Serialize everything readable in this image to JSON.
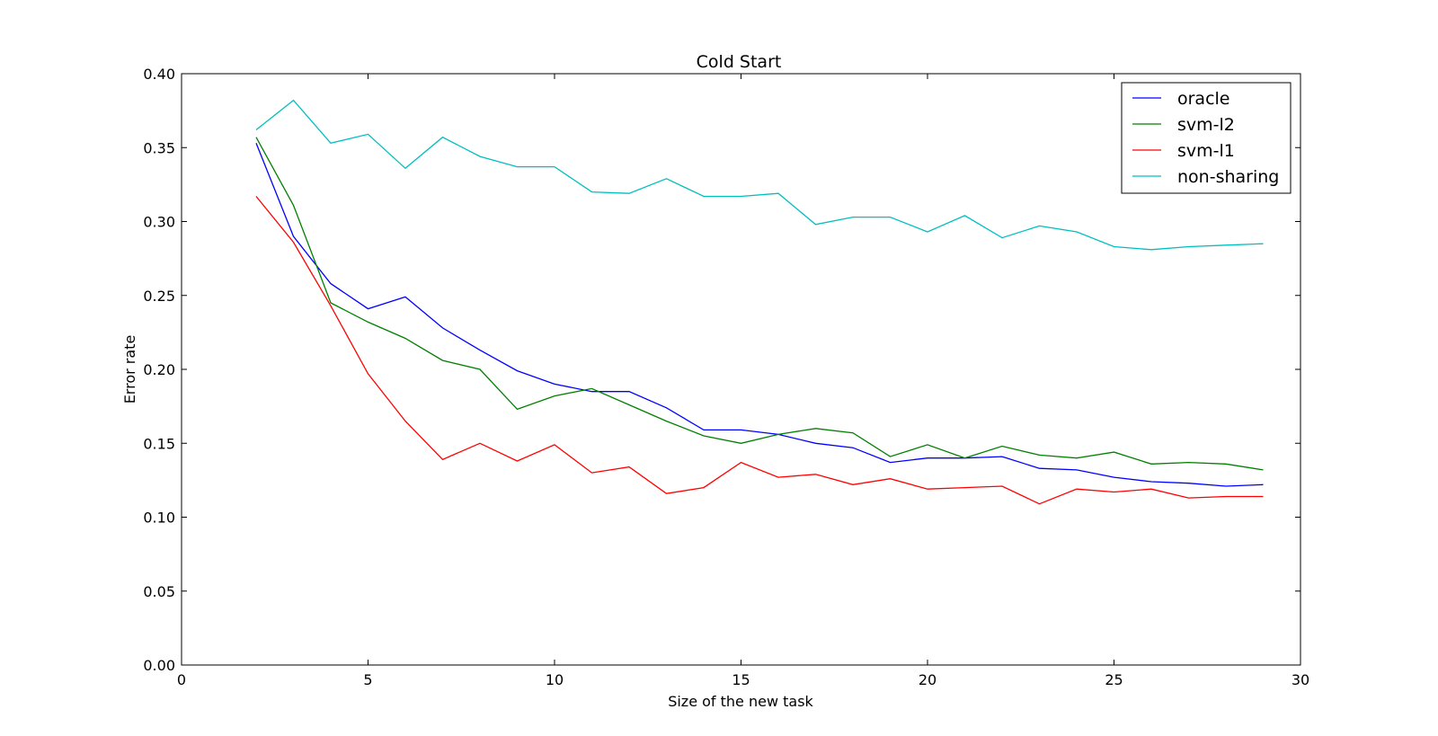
{
  "chart_data": {
    "type": "line",
    "title": "Cold Start",
    "xlabel": "Size of the new task",
    "ylabel": "Error rate",
    "xlim": [
      0,
      30
    ],
    "ylim": [
      0.0,
      0.4
    ],
    "xticks": [
      0,
      5,
      10,
      15,
      20,
      25,
      30
    ],
    "xtick_labels": [
      "0",
      "5",
      "10",
      "15",
      "20",
      "25",
      "30"
    ],
    "yticks": [
      0.0,
      0.05,
      0.1,
      0.15,
      0.2,
      0.25,
      0.3,
      0.35,
      0.4
    ],
    "ytick_labels": [
      "0.00",
      "0.05",
      "0.10",
      "0.15",
      "0.20",
      "0.25",
      "0.30",
      "0.35",
      "0.40"
    ],
    "grid": false,
    "legend_position": "top-right",
    "x": [
      2,
      3,
      4,
      5,
      6,
      7,
      8,
      9,
      10,
      11,
      12,
      13,
      14,
      15,
      16,
      17,
      18,
      19,
      20,
      21,
      22,
      23,
      24,
      25,
      26,
      27,
      28,
      29
    ],
    "series": [
      {
        "name": "oracle",
        "color": "#0000ff",
        "values": [
          0.353,
          0.29,
          0.258,
          0.241,
          0.249,
          0.228,
          0.213,
          0.199,
          0.19,
          0.185,
          0.185,
          0.174,
          0.159,
          0.159,
          0.156,
          0.15,
          0.147,
          0.137,
          0.14,
          0.14,
          0.141,
          0.133,
          0.132,
          0.127,
          0.124,
          0.123,
          0.121,
          0.122
        ]
      },
      {
        "name": "svm-l2",
        "color": "#008000",
        "values": [
          0.357,
          0.311,
          0.245,
          0.232,
          0.221,
          0.206,
          0.2,
          0.173,
          0.182,
          0.187,
          0.176,
          0.165,
          0.155,
          0.15,
          0.156,
          0.16,
          0.157,
          0.141,
          0.149,
          0.14,
          0.148,
          0.142,
          0.14,
          0.144,
          0.136,
          0.137,
          0.136,
          0.132
        ]
      },
      {
        "name": "svm-l1",
        "color": "#ff0000",
        "values": [
          0.317,
          0.286,
          0.243,
          0.197,
          0.165,
          0.139,
          0.15,
          0.138,
          0.149,
          0.13,
          0.134,
          0.116,
          0.12,
          0.137,
          0.127,
          0.129,
          0.122,
          0.126,
          0.119,
          0.12,
          0.121,
          0.109,
          0.119,
          0.117,
          0.119,
          0.113,
          0.114,
          0.114
        ]
      },
      {
        "name": "non-sharing",
        "color": "#00bfbf",
        "values": [
          0.362,
          0.382,
          0.353,
          0.359,
          0.336,
          0.357,
          0.344,
          0.337,
          0.337,
          0.32,
          0.319,
          0.329,
          0.317,
          0.317,
          0.319,
          0.298,
          0.303,
          0.303,
          0.293,
          0.304,
          0.289,
          0.297,
          0.293,
          0.283,
          0.281,
          0.283,
          0.284,
          0.285
        ]
      }
    ]
  }
}
